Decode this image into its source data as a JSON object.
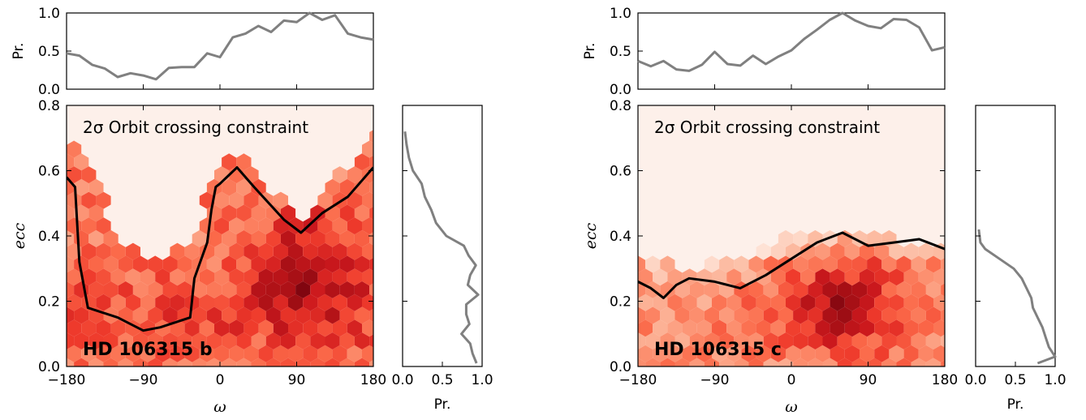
{
  "chart_data": [
    {
      "type": "heatmap",
      "planet_label": "HD 106315 b",
      "annotation": "2σ Orbit crossing constraint",
      "xlabel": "ω",
      "ylabel": "ecc",
      "xlim": [
        -180,
        180
      ],
      "ylim": [
        0,
        0.8
      ],
      "x_ticks": [
        "−180",
        "−90",
        "0",
        "90",
        "180"
      ],
      "y_ticks": [
        "0.0",
        "0.2",
        "0.4",
        "0.6",
        "0.8"
      ],
      "colormap": "Reds",
      "background_color": "#fdf0ea",
      "allowed_boundary": {
        "x": [
          -180,
          -170,
          -165,
          -155,
          -120,
          -90,
          -70,
          -35,
          -30,
          -15,
          -10,
          -5,
          0,
          20,
          40,
          75,
          95,
          120,
          150,
          180
        ],
        "y": [
          0.58,
          0.55,
          0.32,
          0.18,
          0.15,
          0.11,
          0.12,
          0.15,
          0.27,
          0.38,
          0.48,
          0.55,
          0.56,
          0.61,
          0.55,
          0.45,
          0.41,
          0.47,
          0.52,
          0.61
        ]
      },
      "top_marginal": {
        "ylabel": "Pr.",
        "ylim": [
          0,
          1
        ],
        "y_ticks": [
          "0.0",
          "0.5",
          "1.0"
        ],
        "x": [
          -180,
          -165,
          -150,
          -135,
          -120,
          -105,
          -90,
          -75,
          -60,
          -45,
          -30,
          -15,
          0,
          15,
          30,
          45,
          60,
          75,
          90,
          105,
          120,
          135,
          150,
          165,
          180
        ],
        "y": [
          0.47,
          0.44,
          0.32,
          0.27,
          0.16,
          0.21,
          0.18,
          0.13,
          0.28,
          0.29,
          0.29,
          0.47,
          0.42,
          0.68,
          0.73,
          0.83,
          0.75,
          0.9,
          0.88,
          1.0,
          0.91,
          0.97,
          0.73,
          0.68,
          0.65
        ]
      },
      "right_marginal": {
        "xlabel": "Pr.",
        "xlim": [
          0,
          1
        ],
        "x_ticks": [
          "0.0",
          "0.5",
          "1.0"
        ],
        "ecc": [
          0.72,
          0.68,
          0.64,
          0.6,
          0.56,
          0.52,
          0.48,
          0.44,
          0.4,
          0.37,
          0.34,
          0.31,
          0.28,
          0.25,
          0.22,
          0.19,
          0.16,
          0.13,
          0.1,
          0.07,
          0.04,
          0.01
        ],
        "pr": [
          0.03,
          0.05,
          0.08,
          0.13,
          0.24,
          0.28,
          0.36,
          0.42,
          0.55,
          0.77,
          0.83,
          0.92,
          0.85,
          0.82,
          0.95,
          0.8,
          0.8,
          0.84,
          0.74,
          0.85,
          0.88,
          0.93
        ]
      }
    },
    {
      "type": "heatmap",
      "planet_label": "HD 106315 c",
      "annotation": "2σ Orbit crossing constraint",
      "xlabel": "ω",
      "ylabel": "ecc",
      "xlim": [
        -180,
        180
      ],
      "ylim": [
        0,
        0.8
      ],
      "x_ticks": [
        "−180",
        "−90",
        "0",
        "90",
        "180"
      ],
      "y_ticks": [
        "0.0",
        "0.2",
        "0.4",
        "0.6",
        "0.8"
      ],
      "colormap": "Reds",
      "background_color": "#fdf0ea",
      "allowed_boundary": {
        "x": [
          -180,
          -165,
          -150,
          -135,
          -120,
          -90,
          -60,
          -30,
          0,
          30,
          60,
          90,
          120,
          150,
          180
        ],
        "y": [
          0.26,
          0.24,
          0.21,
          0.25,
          0.27,
          0.26,
          0.24,
          0.28,
          0.33,
          0.38,
          0.41,
          0.37,
          0.38,
          0.39,
          0.36
        ]
      },
      "top_marginal": {
        "ylabel": "Pr.",
        "ylim": [
          0,
          1
        ],
        "y_ticks": [
          "0.0",
          "0.5",
          "1.0"
        ],
        "x": [
          -180,
          -165,
          -150,
          -135,
          -120,
          -105,
          -90,
          -75,
          -60,
          -45,
          -30,
          -15,
          0,
          15,
          30,
          45,
          60,
          75,
          90,
          105,
          120,
          135,
          150,
          165,
          180
        ],
        "y": [
          0.37,
          0.3,
          0.37,
          0.26,
          0.24,
          0.32,
          0.49,
          0.33,
          0.31,
          0.44,
          0.33,
          0.43,
          0.51,
          0.66,
          0.78,
          0.91,
          1.0,
          0.9,
          0.83,
          0.8,
          0.92,
          0.91,
          0.81,
          0.51,
          0.55
        ]
      },
      "right_marginal": {
        "xlabel": "Pr.",
        "xlim": [
          0,
          1
        ],
        "x_ticks": [
          "0.0",
          "0.5",
          "1.0"
        ],
        "ecc": [
          0.42,
          0.38,
          0.36,
          0.33,
          0.3,
          0.27,
          0.24,
          0.21,
          0.18,
          0.15,
          0.12,
          0.09,
          0.06,
          0.03,
          0.01
        ],
        "pr": [
          0.04,
          0.06,
          0.12,
          0.3,
          0.48,
          0.58,
          0.64,
          0.7,
          0.72,
          0.78,
          0.84,
          0.88,
          0.92,
          1.0,
          0.78
        ]
      }
    }
  ]
}
